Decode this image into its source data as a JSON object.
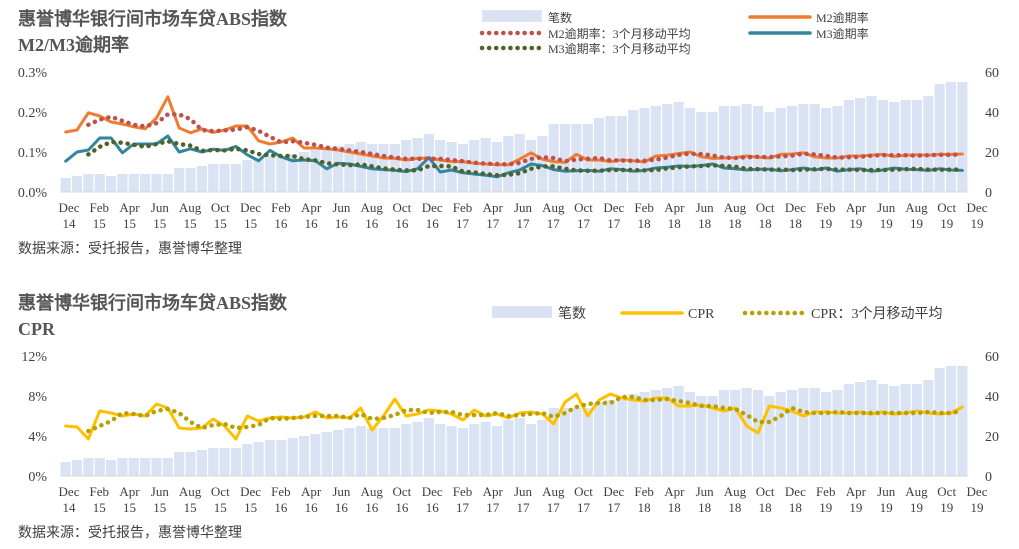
{
  "colors": {
    "bar": "#dae3f3",
    "m2": "#ed7d31",
    "m3": "#2e75b6",
    "m3_line": "#31859c",
    "m2_ma": "#c0504d",
    "m3_ma": "#4f6228",
    "cpr": "#ffc000",
    "cpr_ma": "#b8a000"
  },
  "top": {
    "title_line1": "惠誉博华银行间市场车贷ABS指数",
    "title_line2": "M2/M3逾期率",
    "source": "数据来源：受托报告，惠誉博华整理"
  },
  "bottom": {
    "title_line1": "惠誉博华银行间市场车贷ABS指数",
    "title_line2": "CPR",
    "source": "数据来源：受托报告，惠誉博华整理"
  },
  "chart_data": [
    {
      "type": "line",
      "title": "惠誉博华银行间市场车贷ABS指数 M2/M3逾期率",
      "x_tick_labels": [
        "Dec\n14",
        "Feb\n15",
        "Apr\n15",
        "Jun\n15",
        "Aug\n15",
        "Oct\n15",
        "Dec\n15",
        "Feb\n16",
        "Apr\n16",
        "Jun\n16",
        "Aug\n16",
        "Oct\n16",
        "Dec\n16",
        "Feb\n17",
        "Apr\n17",
        "Jun\n17",
        "Aug\n17",
        "Oct\n17",
        "Dec\n17",
        "Feb\n18",
        "Apr\n18",
        "Jun\n18",
        "Aug\n18",
        "Oct\n18",
        "Dec\n18",
        "Feb\n19",
        "Apr\n19",
        "Jun\n19",
        "Aug\n19",
        "Oct\n19",
        "Dec\n19"
      ],
      "y_left": {
        "ticks": [
          "0.0%",
          "0.1%",
          "0.2%",
          "0.3%"
        ],
        "range": [
          0,
          0.3
        ]
      },
      "y_right": {
        "ticks": [
          "0",
          "20",
          "40",
          "60"
        ],
        "range": [
          0,
          60
        ]
      },
      "legend": [
        "笔数",
        "M2逾期率",
        "M2逾期率：3个月移动平均",
        "M3逾期率",
        "M3逾期率：3个月移动平均"
      ],
      "legend_position": "top-right",
      "series": [
        {
          "name": "笔数",
          "axis": "right",
          "kind": "bar",
          "values": [
            7,
            8,
            9,
            9,
            8,
            9,
            9,
            9,
            9,
            9,
            12,
            12,
            13,
            14,
            14,
            14,
            16,
            17,
            18,
            18,
            19,
            20,
            21,
            22,
            23,
            24,
            25,
            24,
            24,
            24,
            26,
            27,
            29,
            26,
            25,
            24,
            26,
            27,
            25,
            28,
            29,
            26,
            28,
            34,
            34,
            34,
            34,
            37,
            38,
            38,
            41,
            42,
            43,
            44,
            45,
            42,
            40,
            40,
            43,
            43,
            44,
            43,
            40,
            42,
            43,
            44,
            44,
            42,
            43,
            46,
            47,
            48,
            46,
            45,
            46,
            46,
            48,
            54,
            55,
            55
          ]
        },
        {
          "name": "M2逾期率",
          "axis": "left",
          "kind": "line",
          "values": [
            0.15,
            0.155,
            0.198,
            0.19,
            0.175,
            0.17,
            0.163,
            0.158,
            0.185,
            0.238,
            0.16,
            0.148,
            0.158,
            0.149,
            0.155,
            0.165,
            0.165,
            0.128,
            0.12,
            0.125,
            0.135,
            0.11,
            0.11,
            0.108,
            0.105,
            0.1,
            0.095,
            0.09,
            0.085,
            0.084,
            0.08,
            0.084,
            0.085,
            0.08,
            0.076,
            0.076,
            0.072,
            0.07,
            0.068,
            0.068,
            0.082,
            0.098,
            0.082,
            0.076,
            0.074,
            0.094,
            0.08,
            0.08,
            0.076,
            0.08,
            0.078,
            0.075,
            0.09,
            0.092,
            0.096,
            0.1,
            0.088,
            0.084,
            0.085,
            0.086,
            0.09,
            0.087,
            0.085,
            0.094,
            0.095,
            0.098,
            0.088,
            0.085,
            0.085,
            0.09,
            0.09,
            0.092,
            0.094,
            0.089,
            0.092,
            0.093,
            0.092,
            0.094,
            0.094,
            0.095
          ]
        },
        {
          "name": "M3逾期率",
          "axis": "left",
          "kind": "line",
          "values": [
            0.077,
            0.1,
            0.105,
            0.135,
            0.135,
            0.098,
            0.12,
            0.12,
            0.12,
            0.14,
            0.1,
            0.108,
            0.1,
            0.107,
            0.104,
            0.114,
            0.093,
            0.078,
            0.104,
            0.088,
            0.078,
            0.08,
            0.078,
            0.058,
            0.072,
            0.07,
            0.064,
            0.058,
            0.056,
            0.054,
            0.051,
            0.058,
            0.086,
            0.05,
            0.055,
            0.048,
            0.045,
            0.042,
            0.038,
            0.048,
            0.055,
            0.07,
            0.066,
            0.056,
            0.052,
            0.053,
            0.054,
            0.052,
            0.058,
            0.056,
            0.052,
            0.054,
            0.06,
            0.062,
            0.065,
            0.064,
            0.066,
            0.07,
            0.06,
            0.058,
            0.055,
            0.057,
            0.057,
            0.053,
            0.056,
            0.06,
            0.055,
            0.06,
            0.052,
            0.056,
            0.058,
            0.052,
            0.055,
            0.06,
            0.057,
            0.056,
            0.054,
            0.058,
            0.055,
            0.054
          ]
        },
        {
          "name": "M2逾期率：3个月移动平均",
          "axis": "left",
          "kind": "dotted",
          "values": [
            null,
            null,
            0.168,
            0.181,
            0.188,
            0.178,
            0.168,
            0.164,
            0.172,
            0.194,
            0.194,
            0.182,
            0.155,
            0.152,
            0.154,
            0.156,
            0.162,
            0.153,
            0.138,
            0.124,
            0.127,
            0.123,
            0.118,
            0.111,
            0.108,
            0.104,
            0.1,
            0.095,
            0.09,
            0.086,
            0.083,
            0.083,
            0.083,
            0.083,
            0.08,
            0.077,
            0.073,
            0.071,
            0.07,
            0.069,
            0.073,
            0.083,
            0.087,
            0.085,
            0.077,
            0.081,
            0.083,
            0.085,
            0.079,
            0.079,
            0.078,
            0.078,
            0.081,
            0.086,
            0.093,
            0.096,
            0.095,
            0.091,
            0.086,
            0.085,
            0.087,
            0.088,
            0.087,
            0.089,
            0.091,
            0.096,
            0.094,
            0.09,
            0.086,
            0.087,
            0.088,
            0.091,
            0.092,
            0.092,
            0.092,
            0.091,
            0.092,
            0.093,
            0.093,
            0.094
          ]
        },
        {
          "name": "M3逾期率：3个月移动平均",
          "axis": "left",
          "kind": "dotted",
          "values": [
            null,
            null,
            0.094,
            0.113,
            0.125,
            0.123,
            0.118,
            0.113,
            0.12,
            0.127,
            0.12,
            0.116,
            0.103,
            0.105,
            0.104,
            0.108,
            0.104,
            0.095,
            0.092,
            0.09,
            0.09,
            0.082,
            0.079,
            0.072,
            0.069,
            0.067,
            0.069,
            0.064,
            0.059,
            0.056,
            0.054,
            0.054,
            0.065,
            0.065,
            0.064,
            0.051,
            0.049,
            0.045,
            0.042,
            0.043,
            0.047,
            0.058,
            0.064,
            0.064,
            0.058,
            0.054,
            0.053,
            0.053,
            0.055,
            0.055,
            0.055,
            0.054,
            0.055,
            0.059,
            0.062,
            0.064,
            0.065,
            0.067,
            0.065,
            0.063,
            0.058,
            0.057,
            0.056,
            0.056,
            0.055,
            0.056,
            0.057,
            0.058,
            0.056,
            0.056,
            0.055,
            0.055,
            0.055,
            0.056,
            0.057,
            0.058,
            0.056,
            0.056,
            0.056,
            0.056
          ]
        }
      ]
    },
    {
      "type": "line",
      "title": "惠誉博华银行间市场车贷ABS指数 CPR",
      "x_tick_labels": [
        "Dec\n14",
        "Feb\n15",
        "Apr\n15",
        "Jun\n15",
        "Aug\n15",
        "Oct\n15",
        "Dec\n15",
        "Feb\n16",
        "Apr\n16",
        "Jun\n16",
        "Aug\n16",
        "Oct\n16",
        "Dec\n16",
        "Feb\n17",
        "Apr\n17",
        "Jun\n17",
        "Aug\n17",
        "Oct\n17",
        "Dec\n17",
        "Feb\n18",
        "Apr\n18",
        "Jun\n18",
        "Aug\n18",
        "Oct\n18",
        "Dec\n18",
        "Feb\n19",
        "Apr\n19",
        "Jun\n19",
        "Aug\n19",
        "Oct\n19",
        "Dec\n19"
      ],
      "y_left": {
        "ticks": [
          "0%",
          "4%",
          "8%",
          "12%"
        ],
        "range": [
          0,
          0.12
        ]
      },
      "y_right": {
        "ticks": [
          "0",
          "20",
          "40",
          "60"
        ],
        "range": [
          0,
          60
        ]
      },
      "legend": [
        "笔数",
        "CPR",
        "CPR：3个月移动平均"
      ],
      "legend_position": "top-right",
      "series": [
        {
          "name": "笔数",
          "axis": "right",
          "kind": "bar",
          "values": [
            7,
            8,
            9,
            9,
            8,
            9,
            9,
            9,
            9,
            9,
            12,
            12,
            13,
            14,
            14,
            14,
            16,
            17,
            18,
            18,
            19,
            20,
            21,
            22,
            23,
            24,
            25,
            24,
            24,
            24,
            26,
            27,
            29,
            26,
            25,
            24,
            26,
            27,
            25,
            28,
            29,
            26,
            28,
            34,
            34,
            34,
            34,
            37,
            38,
            38,
            41,
            42,
            43,
            44,
            45,
            42,
            40,
            40,
            43,
            43,
            44,
            43,
            40,
            42,
            43,
            44,
            44,
            42,
            43,
            46,
            47,
            48,
            46,
            45,
            46,
            46,
            48,
            54,
            55,
            55
          ]
        },
        {
          "name": "CPR",
          "axis": "left",
          "kind": "line",
          "values": [
            0.05,
            0.049,
            0.037,
            0.065,
            0.063,
            0.06,
            0.062,
            0.06,
            0.072,
            0.068,
            0.048,
            0.047,
            0.048,
            0.057,
            0.05,
            0.037,
            0.06,
            0.055,
            0.058,
            0.059,
            0.058,
            0.059,
            0.064,
            0.058,
            0.059,
            0.058,
            0.068,
            0.046,
            0.06,
            0.077,
            0.06,
            0.062,
            0.066,
            0.065,
            0.062,
            0.056,
            0.066,
            0.06,
            0.062,
            0.058,
            0.063,
            0.064,
            0.062,
            0.052,
            0.074,
            0.082,
            0.06,
            0.076,
            0.082,
            0.078,
            0.076,
            0.075,
            0.078,
            0.078,
            0.07,
            0.07,
            0.071,
            0.068,
            0.065,
            0.068,
            0.05,
            0.043,
            0.07,
            0.068,
            0.065,
            0.06,
            0.064,
            0.064,
            0.063,
            0.063,
            0.064,
            0.062,
            0.064,
            0.062,
            0.063,
            0.065,
            0.063,
            0.062,
            0.063,
            0.069
          ]
        },
        {
          "name": "CPR：3个月移动平均",
          "axis": "left",
          "kind": "dotted",
          "values": [
            null,
            null,
            0.045,
            0.05,
            0.055,
            0.063,
            0.062,
            0.06,
            0.065,
            0.067,
            0.063,
            0.054,
            0.048,
            0.051,
            0.052,
            0.048,
            0.049,
            0.051,
            0.058,
            0.057,
            0.058,
            0.059,
            0.06,
            0.06,
            0.06,
            0.058,
            0.062,
            0.057,
            0.058,
            0.061,
            0.066,
            0.066,
            0.063,
            0.064,
            0.064,
            0.061,
            0.061,
            0.061,
            0.063,
            0.06,
            0.061,
            0.062,
            0.063,
            0.059,
            0.063,
            0.069,
            0.072,
            0.073,
            0.073,
            0.079,
            0.079,
            0.076,
            0.076,
            0.077,
            0.075,
            0.073,
            0.07,
            0.07,
            0.068,
            0.067,
            0.061,
            0.054,
            0.054,
            0.06,
            0.068,
            0.064,
            0.063,
            0.063,
            0.064,
            0.063,
            0.063,
            0.063,
            0.063,
            0.063,
            0.063,
            0.063,
            0.064,
            0.063,
            0.063,
            0.065
          ]
        }
      ]
    }
  ]
}
